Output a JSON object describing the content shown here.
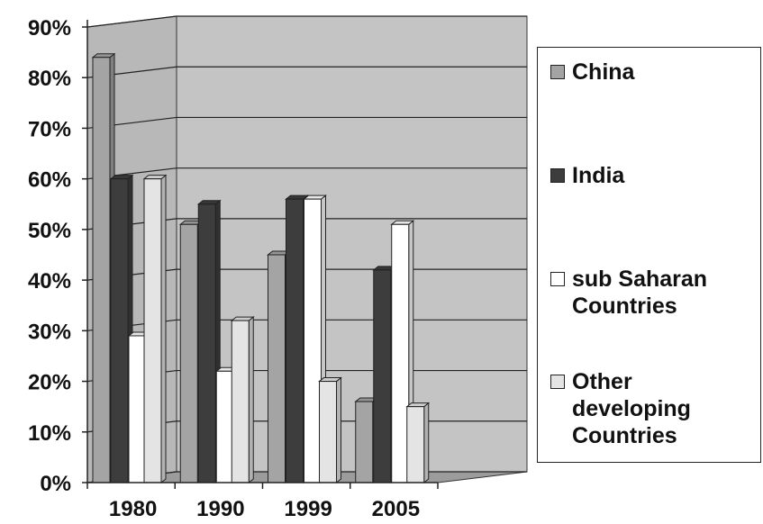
{
  "chart_data": {
    "type": "bar",
    "categories": [
      "1980",
      "1990",
      "1999",
      "2005"
    ],
    "series": [
      {
        "name": "China",
        "values": [
          84,
          51,
          45,
          16
        ]
      },
      {
        "name": "India",
        "values": [
          60,
          55,
          56,
          42
        ]
      },
      {
        "name": "sub Saharan Countries",
        "values": [
          29,
          22,
          56,
          51
        ]
      },
      {
        "name": "Other developing Countries",
        "values": [
          60,
          32,
          20,
          15
        ]
      }
    ],
    "title": "",
    "xlabel": "",
    "ylabel": "",
    "ylim": [
      0,
      90
    ],
    "yticks": [
      "0%",
      "10%",
      "20%",
      "30%",
      "40%",
      "50%",
      "60%",
      "70%",
      "80%",
      "90%"
    ],
    "grid": true,
    "legend_position": "right",
    "style": "3d",
    "colors": {
      "China": "#a4a4a4",
      "India": "#3d3d3d",
      "sub Saharan Countries": "#ffffff",
      "Other developing Countries": "#e4e4e4",
      "plot_background": "#c4c4c4"
    }
  }
}
